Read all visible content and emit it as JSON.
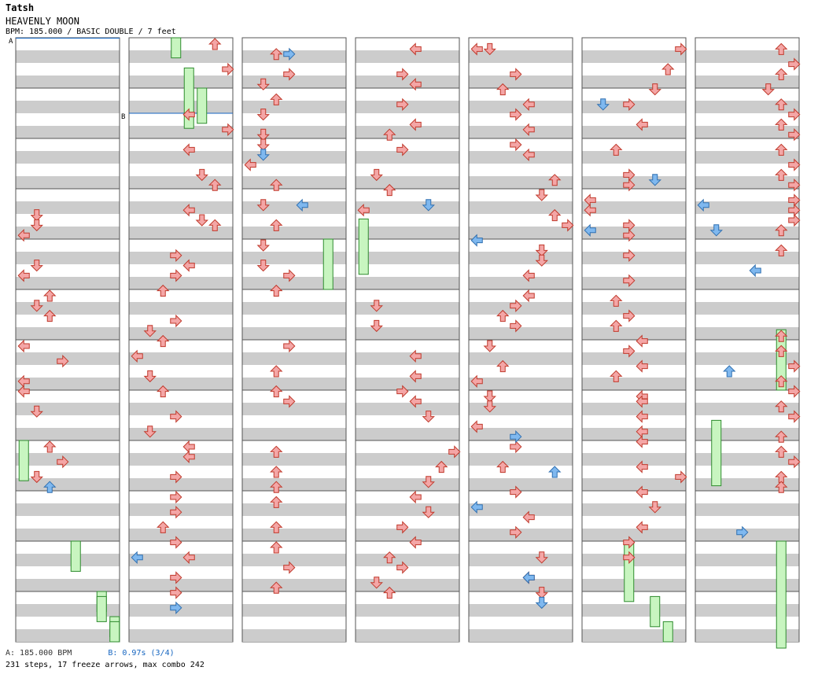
{
  "song": {
    "artist": "Tatsh",
    "title": "HEAVENLY MOON",
    "info": "BPM: 185.000 / BASIC DOUBLE / 7 feet"
  },
  "markers": {
    "a": "A",
    "b": "B"
  },
  "footer": {
    "bpm_legend": "A: 185.000 BPM",
    "stop_legend": "B: 0.97s (3/4)",
    "stats": "231 steps, 17 freeze arrows, max combo 242"
  },
  "colors": {
    "band": "#cccccc",
    "arrow_red": "#f4a6a6",
    "arrow_blue": "#7fb8ef",
    "freeze_green": "#c8f5c0",
    "marker_line": "#1565c0"
  },
  "chart_data": {
    "type": "step-chart",
    "columns": 7,
    "measures_per_column": 12,
    "panels": [
      "left",
      "down",
      "up",
      "right",
      "left",
      "down",
      "up",
      "right"
    ],
    "notes": [
      [
        0,
        3.4,
        1
      ],
      [
        0,
        3.6,
        1
      ],
      [
        0,
        3.8,
        0
      ],
      [
        0,
        4.4,
        1
      ],
      [
        0,
        4.6,
        0
      ],
      [
        0,
        5.0,
        2
      ],
      [
        0,
        5.2,
        1
      ],
      [
        0,
        5.4,
        2
      ],
      [
        0,
        6.0,
        0
      ],
      [
        0,
        6.3,
        3
      ],
      [
        0,
        6.7,
        0
      ],
      [
        0,
        6.9,
        0
      ],
      [
        0,
        7.3,
        1
      ],
      [
        0,
        8.0,
        2
      ],
      [
        0,
        8.3,
        3
      ],
      [
        0,
        8.6,
        1
      ],
      [
        1,
        0.0,
        6
      ],
      [
        1,
        0.5,
        7
      ],
      [
        1,
        1.4,
        4
      ],
      [
        1,
        1.7,
        7
      ],
      [
        1,
        2.1,
        4
      ],
      [
        1,
        2.6,
        5
      ],
      [
        1,
        2.8,
        6
      ],
      [
        1,
        3.3,
        4
      ],
      [
        1,
        3.5,
        5
      ],
      [
        1,
        3.6,
        6
      ],
      [
        1,
        4.2,
        3
      ],
      [
        1,
        4.4,
        4
      ],
      [
        1,
        4.6,
        3
      ],
      [
        1,
        4.9,
        2
      ],
      [
        1,
        5.5,
        3
      ],
      [
        1,
        5.7,
        1
      ],
      [
        1,
        5.9,
        2
      ],
      [
        1,
        6.2,
        0
      ],
      [
        1,
        6.6,
        1
      ],
      [
        1,
        6.9,
        2
      ],
      [
        1,
        7.4,
        3
      ],
      [
        1,
        7.7,
        1
      ],
      [
        1,
        8.0,
        4
      ],
      [
        1,
        8.2,
        4
      ],
      [
        1,
        8.6,
        3
      ],
      [
        1,
        9.0,
        3
      ],
      [
        1,
        9.3,
        3
      ],
      [
        1,
        9.6,
        2
      ],
      [
        1,
        9.9,
        3
      ],
      [
        1,
        10.2,
        4
      ],
      [
        1,
        10.6,
        3
      ],
      [
        1,
        10.9,
        3
      ],
      [
        2,
        0.2,
        2
      ],
      [
        2,
        0.6,
        3
      ],
      [
        2,
        0.8,
        1
      ],
      [
        2,
        1.1,
        2
      ],
      [
        2,
        1.4,
        1
      ],
      [
        2,
        1.8,
        1
      ],
      [
        2,
        2.0,
        1
      ],
      [
        2,
        2.4,
        0
      ],
      [
        2,
        2.8,
        2
      ],
      [
        2,
        3.2,
        1
      ],
      [
        2,
        3.6,
        2
      ],
      [
        2,
        4.0,
        1
      ],
      [
        2,
        4.4,
        1
      ],
      [
        2,
        4.6,
        3
      ],
      [
        2,
        4.9,
        2
      ],
      [
        2,
        6.0,
        3
      ],
      [
        2,
        6.5,
        2
      ],
      [
        2,
        6.9,
        2
      ],
      [
        2,
        7.1,
        3
      ],
      [
        2,
        8.1,
        2
      ],
      [
        2,
        8.5,
        2
      ],
      [
        2,
        8.8,
        2
      ],
      [
        2,
        9.1,
        2
      ],
      [
        2,
        9.6,
        2
      ],
      [
        2,
        10.0,
        2
      ],
      [
        2,
        10.4,
        3
      ],
      [
        2,
        10.8,
        2
      ],
      [
        3,
        0.1,
        4
      ],
      [
        3,
        0.6,
        3
      ],
      [
        3,
        0.8,
        4
      ],
      [
        3,
        1.2,
        3
      ],
      [
        3,
        1.6,
        4
      ],
      [
        3,
        1.8,
        2
      ],
      [
        3,
        2.1,
        3
      ],
      [
        3,
        2.6,
        1
      ],
      [
        3,
        2.9,
        2
      ],
      [
        3,
        3.3,
        0
      ],
      [
        3,
        5.2,
        1
      ],
      [
        3,
        5.6,
        1
      ],
      [
        3,
        6.2,
        4
      ],
      [
        3,
        6.6,
        4
      ],
      [
        3,
        6.9,
        3
      ],
      [
        3,
        7.1,
        4
      ],
      [
        3,
        7.4,
        5
      ],
      [
        3,
        8.1,
        7
      ],
      [
        3,
        8.4,
        6
      ],
      [
        3,
        8.7,
        5
      ],
      [
        3,
        9.0,
        4
      ],
      [
        3,
        9.3,
        5
      ],
      [
        3,
        9.6,
        3
      ],
      [
        3,
        9.9,
        4
      ],
      [
        3,
        10.2,
        2
      ],
      [
        3,
        10.4,
        3
      ],
      [
        3,
        10.7,
        1
      ],
      [
        3,
        10.9,
        2
      ],
      [
        4,
        0.1,
        0
      ],
      [
        4,
        0.1,
        1
      ],
      [
        4,
        0.6,
        3
      ],
      [
        4,
        0.9,
        2
      ],
      [
        4,
        1.2,
        4
      ],
      [
        4,
        1.4,
        3
      ],
      [
        4,
        1.7,
        4
      ],
      [
        4,
        2.0,
        3
      ],
      [
        4,
        2.2,
        4
      ],
      [
        4,
        2.7,
        6
      ],
      [
        4,
        3.0,
        5
      ],
      [
        4,
        3.4,
        6
      ],
      [
        4,
        3.6,
        7
      ],
      [
        4,
        4.1,
        5
      ],
      [
        4,
        4.3,
        5
      ],
      [
        4,
        4.6,
        4
      ],
      [
        4,
        5.0,
        4
      ],
      [
        4,
        5.2,
        3
      ],
      [
        4,
        5.4,
        2
      ],
      [
        4,
        5.6,
        3
      ],
      [
        4,
        6.0,
        1
      ],
      [
        4,
        6.4,
        2
      ],
      [
        4,
        6.7,
        0
      ],
      [
        4,
        7.0,
        1
      ],
      [
        4,
        7.2,
        1
      ],
      [
        4,
        7.6,
        0
      ],
      [
        4,
        8.0,
        3
      ],
      [
        4,
        8.4,
        2
      ],
      [
        4,
        8.9,
        3
      ],
      [
        4,
        9.4,
        4
      ],
      [
        4,
        9.7,
        3
      ],
      [
        4,
        10.2,
        5
      ],
      [
        4,
        10.6,
        4
      ],
      [
        4,
        10.9,
        5
      ],
      [
        5,
        0.1,
        7
      ],
      [
        5,
        0.5,
        6
      ],
      [
        5,
        0.9,
        5
      ],
      [
        5,
        1.2,
        3
      ],
      [
        5,
        1.6,
        4
      ],
      [
        5,
        2.1,
        2
      ],
      [
        5,
        2.6,
        3
      ],
      [
        5,
        2.8,
        3
      ],
      [
        5,
        3.1,
        0
      ],
      [
        5,
        3.3,
        0
      ],
      [
        5,
        3.6,
        3
      ],
      [
        5,
        3.8,
        3
      ],
      [
        5,
        4.2,
        3
      ],
      [
        5,
        4.7,
        3
      ],
      [
        5,
        5.1,
        2
      ],
      [
        5,
        5.4,
        3
      ],
      [
        5,
        5.6,
        2
      ],
      [
        5,
        5.9,
        4
      ],
      [
        5,
        6.1,
        3
      ],
      [
        5,
        6.4,
        4
      ],
      [
        5,
        6.6,
        2
      ],
      [
        5,
        7.0,
        4
      ],
      [
        5,
        7.1,
        4
      ],
      [
        5,
        7.4,
        4
      ],
      [
        5,
        7.7,
        4
      ],
      [
        5,
        7.9,
        4
      ],
      [
        5,
        8.4,
        4
      ],
      [
        5,
        8.6,
        7
      ],
      [
        5,
        8.9,
        4
      ],
      [
        5,
        9.2,
        5
      ],
      [
        5,
        9.6,
        4
      ],
      [
        5,
        9.9,
        3
      ],
      [
        5,
        10.2,
        3
      ],
      [
        6,
        0.1,
        6
      ],
      [
        6,
        0.4,
        7
      ],
      [
        6,
        0.6,
        6
      ],
      [
        6,
        0.9,
        5
      ],
      [
        6,
        1.2,
        6
      ],
      [
        6,
        1.4,
        7
      ],
      [
        6,
        1.6,
        6
      ],
      [
        6,
        1.8,
        7
      ],
      [
        6,
        2.1,
        6
      ],
      [
        6,
        2.4,
        7
      ],
      [
        6,
        2.6,
        6
      ],
      [
        6,
        2.8,
        7
      ],
      [
        6,
        3.1,
        7
      ],
      [
        6,
        3.3,
        7
      ],
      [
        6,
        3.5,
        7
      ],
      [
        6,
        3.7,
        6
      ],
      [
        6,
        4.1,
        6
      ],
      [
        6,
        5.8,
        6
      ],
      [
        6,
        6.1,
        6
      ],
      [
        6,
        6.4,
        7
      ],
      [
        6,
        6.7,
        6
      ],
      [
        6,
        6.9,
        7
      ],
      [
        6,
        7.2,
        6
      ],
      [
        6,
        7.4,
        7
      ],
      [
        6,
        7.8,
        6
      ],
      [
        6,
        8.1,
        6
      ],
      [
        6,
        8.3,
        7
      ],
      [
        6,
        8.6,
        6
      ],
      [
        6,
        8.8,
        6
      ]
    ],
    "blue_notes": [
      [
        2,
        0.2
      ],
      [
        2,
        2.2
      ],
      [
        2,
        3.2
      ],
      [
        3,
        3.2
      ],
      [
        4,
        3.9
      ],
      [
        4,
        7.8
      ],
      [
        4,
        8.5
      ],
      [
        4,
        9.2
      ],
      [
        4,
        11.1
      ],
      [
        5,
        1.2
      ],
      [
        5,
        2.7
      ],
      [
        5,
        3.7
      ],
      [
        6,
        3.2
      ],
      [
        6,
        3.7
      ],
      [
        6,
        4.5
      ],
      [
        6,
        6.5
      ],
      [
        6,
        9.7
      ],
      [
        0,
        8.8
      ],
      [
        1,
        10.2
      ],
      [
        1,
        11.2
      ],
      [
        4,
        10.6
      ]
    ],
    "freezes": [
      [
        0,
        8.0,
        8.8
      ],
      [
        0,
        10.0,
        10.6
      ],
      [
        0,
        11.0,
        11.4
      ],
      [
        0,
        11.5,
        11.9
      ],
      [
        0,
        11.1,
        11.6
      ],
      [
        0,
        11.6,
        12.0
      ],
      [
        1,
        0.0,
        0.4
      ],
      [
        1,
        1.0,
        1.7
      ],
      [
        1,
        0.6,
        1.8
      ],
      [
        2,
        4.0,
        5.0
      ],
      [
        3,
        3.6,
        4.7
      ],
      [
        5,
        10.0,
        11.2
      ],
      [
        5,
        11.1,
        11.7
      ],
      [
        5,
        11.6,
        12.0
      ],
      [
        6,
        5.8,
        7.0
      ],
      [
        6,
        7.6,
        8.9
      ],
      [
        6,
        10.0,
        12.3
      ]
    ]
  }
}
